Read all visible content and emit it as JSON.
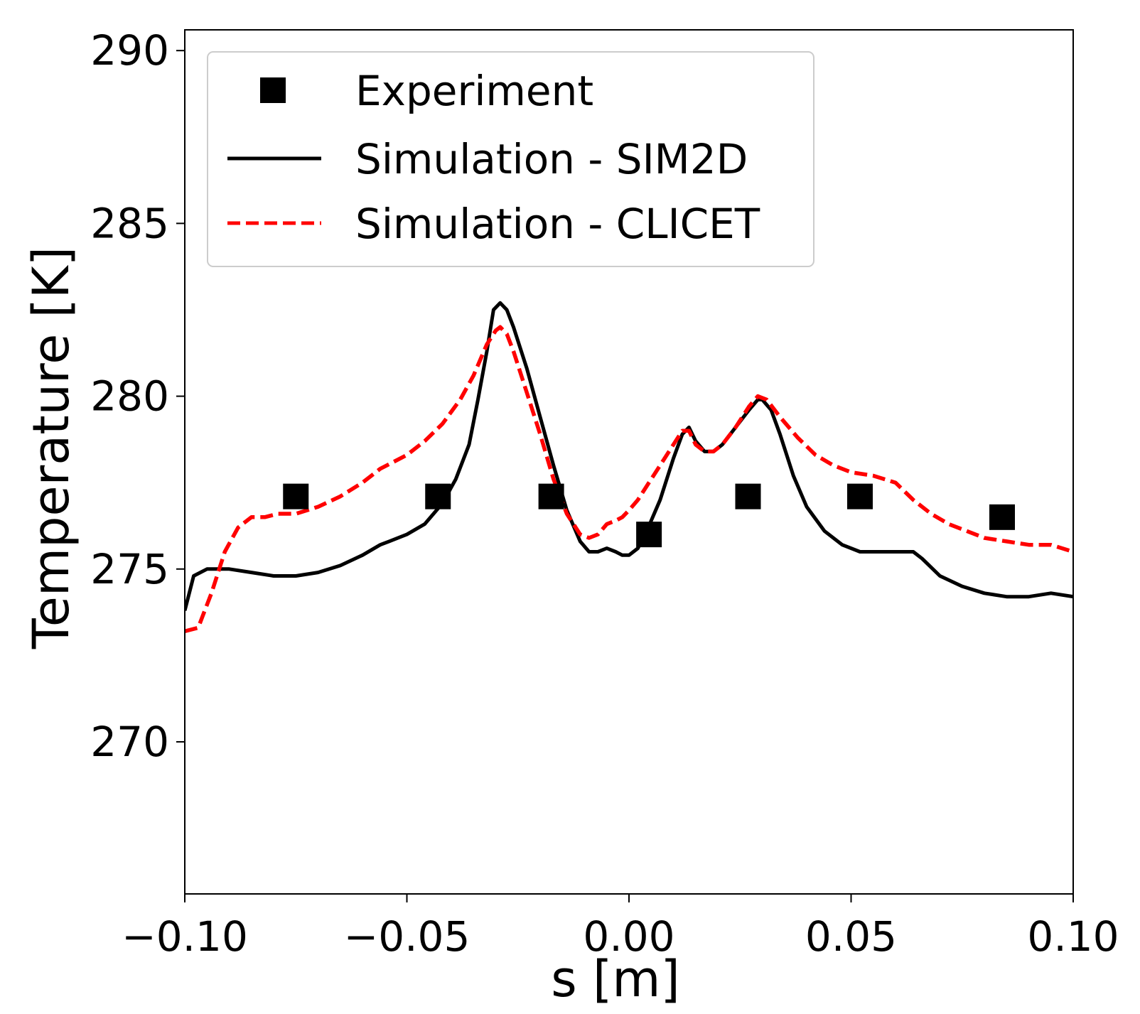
{
  "chart_data": {
    "type": "line",
    "title": "",
    "xlabel": "s [m]",
    "ylabel": "Temperature [K]",
    "xlim": [
      -0.1,
      0.1
    ],
    "ylim": [
      265.6,
      290.6
    ],
    "grid": false,
    "legend_position": "top-left",
    "x_ticks": [
      -0.1,
      -0.05,
      0.0,
      0.05,
      0.1
    ],
    "x_tick_labels": [
      "−0.10",
      "−0.05",
      "0.00",
      "0.05",
      "0.10"
    ],
    "y_ticks": [
      270,
      275,
      280,
      285,
      290
    ],
    "y_tick_labels": [
      "270",
      "275",
      "280",
      "285",
      "290"
    ],
    "series": [
      {
        "name": "Experiment",
        "style": "markers",
        "marker": "square",
        "color": "#000000",
        "x": [
          -0.075,
          -0.043,
          -0.0175,
          0.0045,
          0.0268,
          0.052,
          0.084
        ],
        "y": [
          277.1,
          277.1,
          277.1,
          276.0,
          277.1,
          277.1,
          276.5
        ]
      },
      {
        "name": "Simulation - SIM2D",
        "style": "solid",
        "color": "#000000",
        "x": [
          -0.1,
          -0.098,
          -0.095,
          -0.09,
          -0.085,
          -0.08,
          -0.075,
          -0.07,
          -0.065,
          -0.06,
          -0.056,
          -0.054,
          -0.05,
          -0.046,
          -0.042,
          -0.039,
          -0.036,
          -0.034,
          -0.032,
          -0.0305,
          -0.029,
          -0.0275,
          -0.026,
          -0.023,
          -0.02,
          -0.017,
          -0.014,
          -0.011,
          -0.009,
          -0.007,
          -0.005,
          -0.003,
          -0.0015,
          0.0,
          0.002,
          0.004,
          0.007,
          0.01,
          0.012,
          0.0135,
          0.015,
          0.017,
          0.019,
          0.021,
          0.024,
          0.027,
          0.029,
          0.03,
          0.032,
          0.034,
          0.037,
          0.04,
          0.044,
          0.048,
          0.052,
          0.056,
          0.06,
          0.064,
          0.066,
          0.07,
          0.075,
          0.08,
          0.085,
          0.09,
          0.095,
          0.1
        ],
        "y": [
          273.8,
          274.8,
          275.0,
          275.0,
          274.9,
          274.8,
          274.8,
          274.9,
          275.1,
          275.4,
          275.7,
          275.8,
          276.0,
          276.3,
          276.9,
          277.6,
          278.6,
          279.9,
          281.3,
          282.5,
          282.7,
          282.5,
          282.0,
          280.8,
          279.4,
          278.0,
          276.7,
          275.8,
          275.5,
          275.5,
          275.6,
          275.5,
          275.4,
          275.4,
          275.6,
          276.1,
          277.0,
          278.2,
          278.9,
          279.1,
          278.7,
          278.4,
          278.4,
          278.6,
          279.1,
          279.6,
          279.9,
          279.9,
          279.6,
          278.9,
          277.7,
          276.8,
          276.1,
          275.7,
          275.5,
          275.5,
          275.5,
          275.5,
          275.3,
          274.8,
          274.5,
          274.3,
          274.2,
          274.2,
          274.3,
          274.2
        ]
      },
      {
        "name": "Simulation - CLICET",
        "style": "dashed",
        "color": "#ff0000",
        "x": [
          -0.1,
          -0.097,
          -0.094,
          -0.091,
          -0.088,
          -0.085,
          -0.082,
          -0.079,
          -0.075,
          -0.07,
          -0.065,
          -0.06,
          -0.056,
          -0.053,
          -0.05,
          -0.046,
          -0.042,
          -0.038,
          -0.035,
          -0.032,
          -0.03,
          -0.029,
          -0.0275,
          -0.026,
          -0.023,
          -0.02,
          -0.017,
          -0.014,
          -0.011,
          -0.009,
          -0.007,
          -0.005,
          -0.003,
          -0.0015,
          0.0,
          0.002,
          0.004,
          0.007,
          0.01,
          0.012,
          0.0135,
          0.015,
          0.017,
          0.019,
          0.021,
          0.024,
          0.027,
          0.029,
          0.031,
          0.034,
          0.038,
          0.042,
          0.046,
          0.05,
          0.055,
          0.06,
          0.064,
          0.068,
          0.072,
          0.076,
          0.08,
          0.085,
          0.09,
          0.095,
          0.1
        ],
        "y": [
          273.2,
          273.3,
          274.3,
          275.5,
          276.2,
          276.5,
          276.5,
          276.6,
          276.6,
          276.8,
          277.1,
          277.5,
          277.9,
          278.1,
          278.3,
          278.7,
          279.2,
          279.9,
          280.6,
          281.5,
          281.9,
          282.0,
          281.8,
          281.3,
          280.1,
          278.9,
          277.6,
          276.6,
          276.0,
          275.9,
          276.0,
          276.3,
          276.4,
          276.5,
          276.7,
          277.0,
          277.4,
          278.0,
          278.6,
          279.0,
          279.0,
          278.6,
          278.4,
          278.4,
          278.6,
          279.1,
          279.7,
          280.0,
          279.9,
          279.4,
          278.8,
          278.3,
          278.0,
          277.8,
          277.7,
          277.5,
          277.0,
          276.6,
          276.3,
          276.1,
          275.9,
          275.8,
          275.7,
          275.7,
          275.5
        ]
      }
    ]
  }
}
